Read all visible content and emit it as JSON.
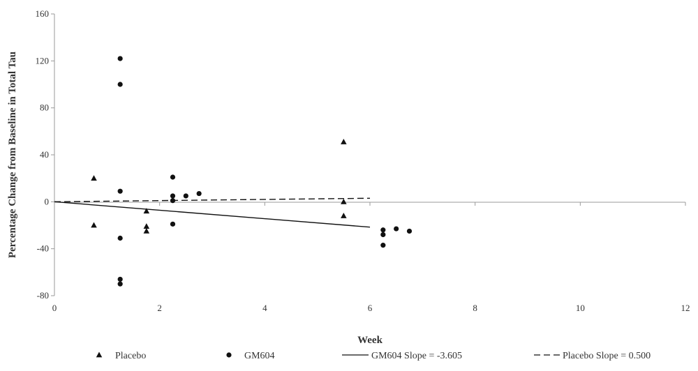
{
  "chart_data": {
    "type": "scatter",
    "xlabel": "Week",
    "ylabel": "Percentage Change from Baseline in Total Tau",
    "xlim": [
      0,
      12
    ],
    "ylim": [
      -80,
      160
    ],
    "x_ticks": [
      "0",
      "2",
      "4",
      "6",
      "8",
      "10",
      "12"
    ],
    "y_ticks": [
      "160",
      "120",
      "80",
      "40",
      "0",
      "-40",
      "-80"
    ],
    "grid": false,
    "legend_position": "bottom",
    "series": [
      {
        "name": "Placebo",
        "marker": "triangle",
        "color": "#111111",
        "points": [
          {
            "x": 0.75,
            "y": 20
          },
          {
            "x": 0.75,
            "y": -20
          },
          {
            "x": 1.75,
            "y": -8
          },
          {
            "x": 1.75,
            "y": -21
          },
          {
            "x": 1.75,
            "y": -25
          },
          {
            "x": 5.5,
            "y": 51
          },
          {
            "x": 5.5,
            "y": 0
          },
          {
            "x": 5.5,
            "y": -12
          }
        ]
      },
      {
        "name": "GM604",
        "marker": "circle",
        "color": "#111111",
        "points": [
          {
            "x": 1.25,
            "y": 122
          },
          {
            "x": 1.25,
            "y": 100
          },
          {
            "x": 1.25,
            "y": 9
          },
          {
            "x": 1.25,
            "y": -31
          },
          {
            "x": 1.25,
            "y": -66
          },
          {
            "x": 1.25,
            "y": -70
          },
          {
            "x": 2.25,
            "y": 21
          },
          {
            "x": 2.25,
            "y": 5
          },
          {
            "x": 2.25,
            "y": 1
          },
          {
            "x": 2.25,
            "y": -19
          },
          {
            "x": 2.5,
            "y": 5
          },
          {
            "x": 2.75,
            "y": 7
          },
          {
            "x": 6.25,
            "y": -24
          },
          {
            "x": 6.25,
            "y": -28
          },
          {
            "x": 6.25,
            "y": -37
          },
          {
            "x": 6.5,
            "y": -23
          },
          {
            "x": 6.75,
            "y": -25
          }
        ]
      }
    ],
    "trend_lines": [
      {
        "name": "GM604 Slope = -3.605",
        "style": "solid",
        "color": "#111111",
        "x": [
          0,
          6
        ],
        "y": [
          0,
          -21.6
        ]
      },
      {
        "name": "Placebo Slope = 0.500",
        "style": "dashed",
        "color": "#111111",
        "x": [
          0,
          6
        ],
        "y": [
          0,
          3
        ]
      }
    ],
    "legend": [
      {
        "label": "Placebo",
        "kind": "triangle"
      },
      {
        "label": "GM604",
        "kind": "circle"
      },
      {
        "label": "GM604 Slope = -3.605",
        "kind": "solid-line"
      },
      {
        "label": "Placebo Slope = 0.500",
        "kind": "dashed-line"
      }
    ]
  }
}
